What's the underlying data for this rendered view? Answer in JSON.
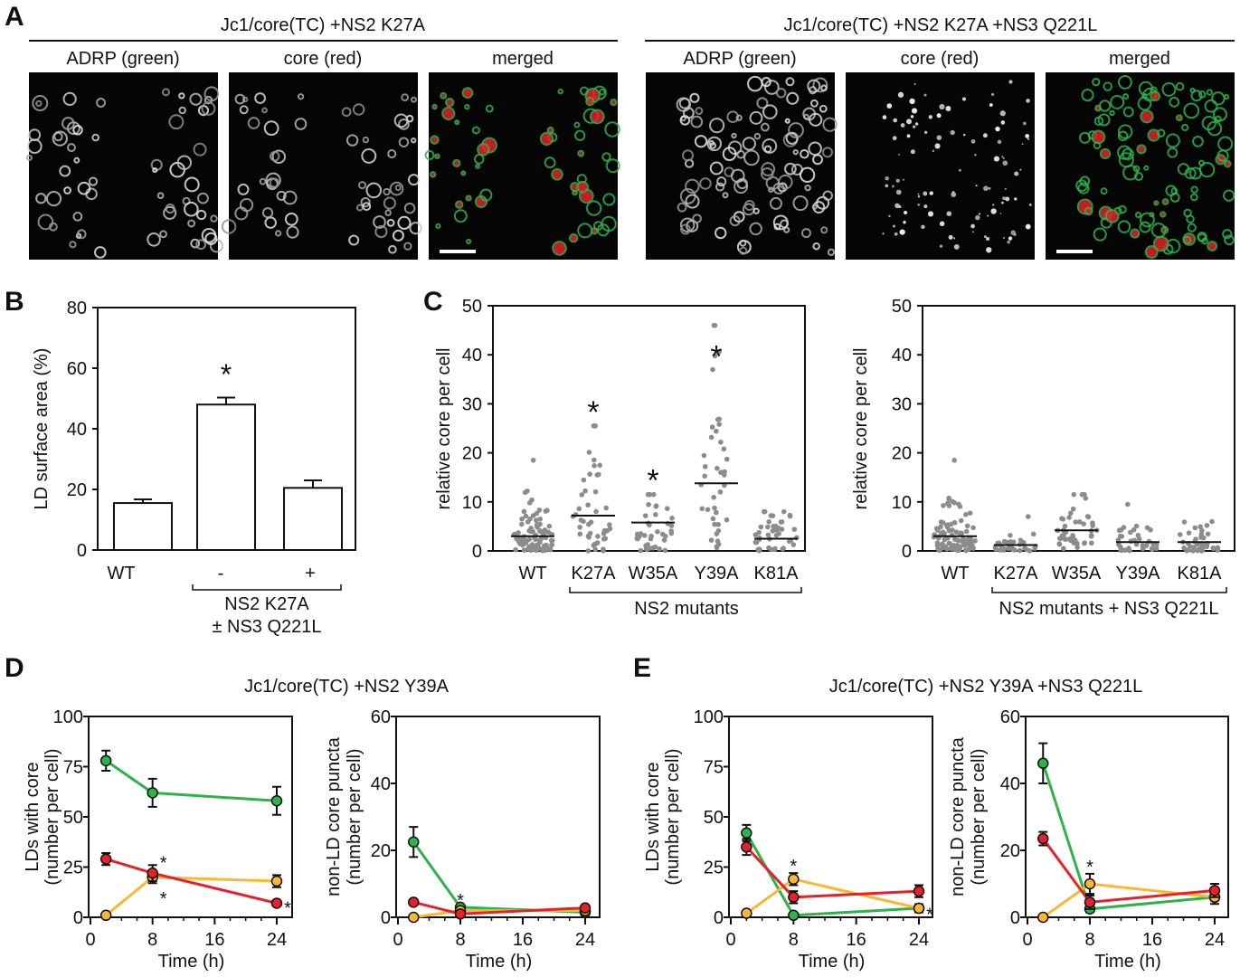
{
  "colors": {
    "green": "#2db34a",
    "red": "#e8202a",
    "yellow": "#fbb731",
    "dots": "#8c8c8c"
  },
  "panel_a": {
    "label": "A",
    "groups": [
      {
        "title": "Jc1/core(TC) +NS2 K27A",
        "channels": [
          "ADRP (green)",
          "core (red)",
          "merged"
        ]
      },
      {
        "title": "Jc1/core(TC) +NS2 K27A +NS3 Q221L",
        "channels": [
          "ADRP (green)",
          "core (red)",
          "merged"
        ]
      }
    ]
  },
  "chart_data": [
    {
      "id": "B",
      "panel_label": "B",
      "type": "bar",
      "ylabel": "LD surface area (%)",
      "ylim": [
        0,
        80
      ],
      "yticks": [
        0,
        20,
        40,
        60,
        80
      ],
      "categories": [
        "WT",
        "-",
        "+"
      ],
      "values": [
        15.5,
        48,
        20.5
      ],
      "errors": [
        1.2,
        2.3,
        2.5
      ],
      "significance": [
        "",
        "*",
        ""
      ],
      "group_label": [
        "NS2 K27A",
        "± NS3 Q221L"
      ]
    },
    {
      "id": "C1",
      "panel_label": "C",
      "type": "scatter",
      "ylabel": "relative core per cell",
      "ylim": [
        0,
        50
      ],
      "yticks": [
        0,
        10,
        20,
        30,
        40,
        50
      ],
      "categories": [
        "WT",
        "K27A",
        "W35A",
        "Y39A",
        "K81A"
      ],
      "medians": [
        3,
        7.2,
        5.8,
        13.8,
        2.5
      ],
      "max": [
        18.5,
        25.5,
        11.5,
        46,
        8
      ],
      "n": [
        90,
        45,
        40,
        40,
        45
      ],
      "significance": [
        "",
        "*",
        "*",
        "*",
        ""
      ],
      "group_label": "NS2 mutants"
    },
    {
      "id": "C2",
      "type": "scatter",
      "ylabel": "relative core per cell",
      "ylim": [
        0,
        50
      ],
      "yticks": [
        0,
        10,
        20,
        30,
        40,
        50
      ],
      "categories": [
        "WT",
        "K27A",
        "W35A",
        "Y39A",
        "K81A"
      ],
      "medians": [
        3,
        1.2,
        4.2,
        1.8,
        1.8
      ],
      "max": [
        18.5,
        7,
        11.5,
        9.5,
        6
      ],
      "n": [
        90,
        30,
        45,
        35,
        40
      ],
      "significance": [
        "",
        "",
        "",
        "",
        ""
      ],
      "group_label": "NS2 mutants + NS3 Q221L"
    },
    {
      "id": "D1",
      "panel_label": "D",
      "title": "Jc1/core(TC) +NS2 Y39A",
      "type": "line",
      "ylabel": [
        "LDs with core",
        "(number per cell)"
      ],
      "xlabel": "Time (h)",
      "ylim": [
        0,
        100
      ],
      "yticks": [
        0,
        25,
        50,
        75,
        100
      ],
      "xlim": [
        0,
        24
      ],
      "xticks": [
        0,
        8,
        16,
        24
      ],
      "x": [
        2,
        8,
        24
      ],
      "series": [
        {
          "name": "green",
          "values": [
            78,
            62,
            58
          ],
          "errors": [
            5,
            7,
            7
          ]
        },
        {
          "name": "yellow",
          "values": [
            1,
            20,
            18
          ],
          "errors": [
            1,
            3,
            3
          ]
        },
        {
          "name": "red",
          "values": [
            29,
            22,
            7
          ],
          "errors": [
            3,
            4,
            1
          ]
        }
      ],
      "annotations": [
        {
          "x": 8,
          "y": 24,
          "text": "*"
        },
        {
          "x": 8,
          "y": 18,
          "text": "*"
        },
        {
          "x": 24,
          "y": 6,
          "text": "*"
        }
      ]
    },
    {
      "id": "D2",
      "type": "line",
      "ylabel": [
        "non-LD core puncta",
        "(number per cell)"
      ],
      "xlabel": "Time (h)",
      "ylim": [
        0,
        60
      ],
      "yticks": [
        0,
        20,
        40,
        60
      ],
      "xlim": [
        0,
        24
      ],
      "xticks": [
        0,
        8,
        16,
        24
      ],
      "x": [
        2,
        8,
        24
      ],
      "series": [
        {
          "name": "green",
          "values": [
            22.5,
            3,
            1.5
          ],
          "errors": [
            4.5,
            0.5,
            0.5
          ]
        },
        {
          "name": "yellow",
          "values": [
            0,
            2,
            2
          ],
          "errors": [
            0,
            0.5,
            0.5
          ]
        },
        {
          "name": "red",
          "values": [
            4.5,
            1,
            2.8
          ],
          "errors": [
            0.5,
            0.5,
            0.5
          ]
        }
      ],
      "annotations": [
        {
          "x": 8,
          "y": 6,
          "text": "*"
        }
      ]
    },
    {
      "id": "E1",
      "panel_label": "E",
      "title": "Jc1/core(TC) +NS2 Y39A +NS3 Q221L",
      "type": "line",
      "ylabel": [
        "LDs with core",
        "(number per cell)"
      ],
      "xlabel": "Time (h)",
      "ylim": [
        0,
        100
      ],
      "yticks": [
        0,
        25,
        50,
        75,
        100
      ],
      "xlim": [
        0,
        24
      ],
      "xticks": [
        0,
        8,
        16,
        24
      ],
      "x": [
        2,
        8,
        24
      ],
      "series": [
        {
          "name": "green",
          "values": [
            42,
            1,
            4.5
          ],
          "errors": [
            4,
            0.5,
            1
          ]
        },
        {
          "name": "yellow",
          "values": [
            2,
            19,
            4.5
          ],
          "errors": [
            1,
            3,
            2
          ]
        },
        {
          "name": "red",
          "values": [
            35,
            10,
            13
          ],
          "errors": [
            4,
            3,
            3
          ]
        }
      ],
      "annotations": [
        {
          "x": 8,
          "y": 27,
          "text": "*"
        },
        {
          "x": 24,
          "y": 3,
          "text": "*"
        }
      ]
    },
    {
      "id": "E2",
      "type": "line",
      "ylabel": [
        "non-LD core puncta",
        "(number per cell)"
      ],
      "xlabel": "Time (h)",
      "ylim": [
        0,
        60
      ],
      "yticks": [
        0,
        20,
        40,
        60
      ],
      "xlim": [
        0,
        24
      ],
      "xticks": [
        0,
        8,
        16,
        24
      ],
      "x": [
        2,
        8,
        24
      ],
      "series": [
        {
          "name": "green",
          "values": [
            46,
            2.5,
            6
          ],
          "errors": [
            6,
            1,
            1
          ]
        },
        {
          "name": "yellow",
          "values": [
            0,
            10,
            6
          ],
          "errors": [
            0,
            3,
            2
          ]
        },
        {
          "name": "red",
          "values": [
            23.5,
            4.5,
            8
          ],
          "errors": [
            2,
            2,
            2
          ]
        }
      ],
      "annotations": [
        {
          "x": 8,
          "y": 16,
          "text": "*"
        }
      ]
    }
  ]
}
